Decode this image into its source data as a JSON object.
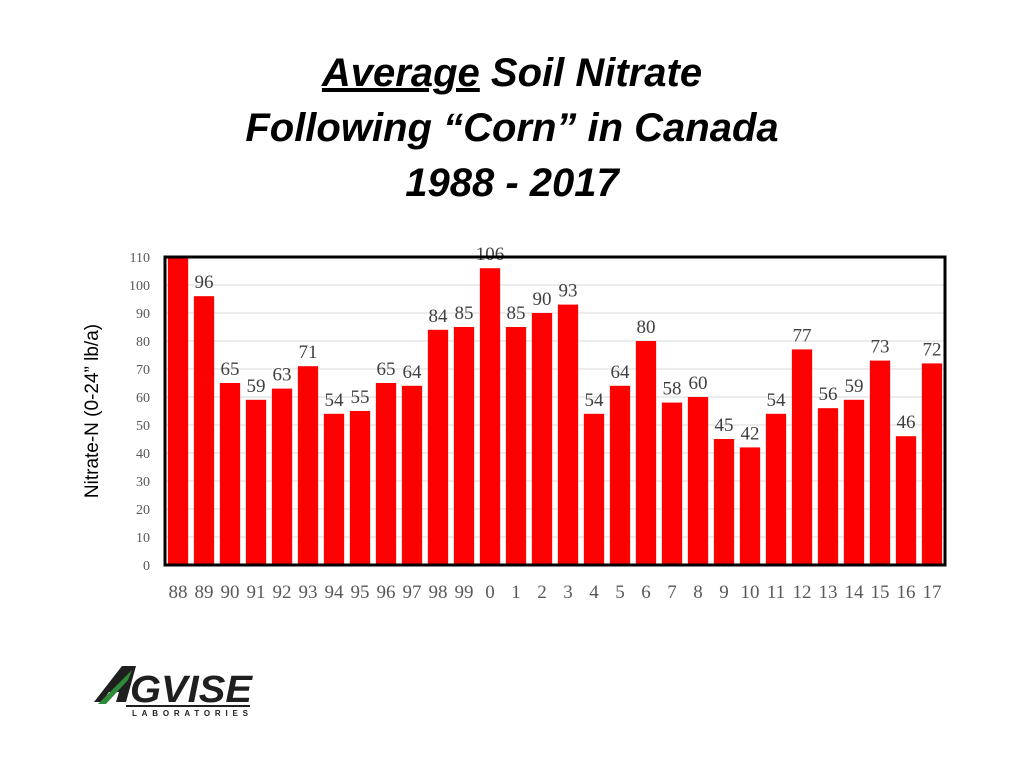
{
  "title": {
    "line1_underlined": "Average",
    "line1_rest": " Soil Nitrate",
    "line2": "Following “Corn” in Canada",
    "line3": "1988 - 2017"
  },
  "chart_data": {
    "type": "bar",
    "title": "Average Soil Nitrate Following “Corn” in Canada 1988 - 2017",
    "ylabel": "Nitrate-N (0-24” lb/a)",
    "xlabel": "",
    "ylim": [
      0,
      110
    ],
    "yticks": [
      0,
      10,
      20,
      30,
      40,
      50,
      60,
      70,
      80,
      90,
      100,
      110
    ],
    "grid": true,
    "categories": [
      "88",
      "89",
      "90",
      "91",
      "92",
      "93",
      "94",
      "95",
      "96",
      "97",
      "98",
      "99",
      "0",
      "1",
      "2",
      "3",
      "4",
      "5",
      "6",
      "7",
      "8",
      "9",
      "10",
      "11",
      "12",
      "13",
      "14",
      "15",
      "16",
      "17"
    ],
    "values": [
      110,
      96,
      65,
      59,
      63,
      71,
      54,
      55,
      65,
      64,
      84,
      85,
      106,
      85,
      90,
      93,
      54,
      64,
      80,
      58,
      60,
      45,
      42,
      54,
      77,
      56,
      59,
      73,
      46,
      72
    ],
    "data_labels": [
      "",
      "96",
      "65",
      "59",
      "63",
      "71",
      "54",
      "55",
      "65",
      "64",
      "84",
      "85",
      "106",
      "85",
      "90",
      "93",
      "54",
      "64",
      "80",
      "58",
      "60",
      "45",
      "42",
      "54",
      "77",
      "56",
      "59",
      "73",
      "46",
      "72"
    ],
    "bar_color": "#ff0000",
    "frame_color": "#000000"
  },
  "logo": {
    "name": "AGVISE",
    "subtitle": "LABORATORIES",
    "colors": {
      "main": "#1f1f1f",
      "accent": "#2e8b3a"
    }
  }
}
